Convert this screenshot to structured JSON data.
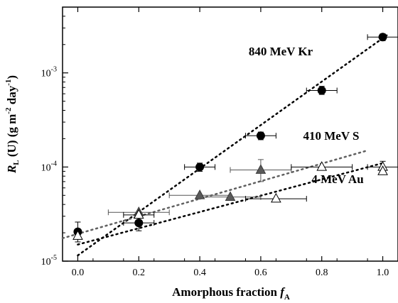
{
  "chart_data": {
    "type": "scatter",
    "xlabel": "Amorphous fraction f",
    "xlabel_main": "Amorphous fraction",
    "xlabel_var": "f",
    "xlabel_sub": "A",
    "ylabel_var": "R",
    "ylabel_sub": "L",
    "ylabel_rest": "(U) (g m",
    "ylabel_exp1": "-2",
    "ylabel_mid": "day",
    "ylabel_exp2": "-1",
    "ylabel_end": ")",
    "xlim": [
      -0.05,
      1.05
    ],
    "ylim": [
      1e-05,
      0.005
    ],
    "yscale": "log",
    "xticks": [
      0.0,
      0.2,
      0.4,
      0.6,
      0.8,
      1.0
    ],
    "xtick_labels": [
      "0.0",
      "0.2",
      "0.4",
      "0.6",
      "0.8",
      "1.0"
    ],
    "yticks": [
      1e-05,
      0.0001,
      0.001
    ],
    "ytick_base": "10",
    "ytick_exps": [
      "-5",
      "-4",
      "-3"
    ],
    "series": [
      {
        "name": "840 MeV Kr",
        "marker": "circle",
        "fill": "#000000",
        "points": [
          {
            "x": 0.0,
            "y": 2.05e-05,
            "yerr_lo": 1.6e-05,
            "yerr_hi": 2.6e-05
          },
          {
            "x": 0.2,
            "y": 2.55e-05,
            "xerr": 0.05,
            "yerr_lo": 2.1e-05,
            "yerr_hi": 3e-05
          },
          {
            "x": 0.4,
            "y": 0.0001,
            "xerr": 0.05,
            "yerr_lo": 9e-05,
            "yerr_hi": 0.00011
          },
          {
            "x": 0.6,
            "y": 0.000215,
            "xerr": 0.05,
            "yerr_lo": 0.000195,
            "yerr_hi": 0.000235
          },
          {
            "x": 0.8,
            "y": 0.00065,
            "xerr": 0.05,
            "yerr_lo": 0.00059,
            "yerr_hi": 0.00072
          },
          {
            "x": 1.0,
            "y": 0.0024,
            "xerr": 0.05,
            "yerr_lo": 0.0022,
            "yerr_hi": 0.0026
          }
        ],
        "fit": {
          "x": [
            0.0,
            1.02
          ],
          "y": [
            1.15e-05,
            0.0026
          ],
          "color": "#000000"
        }
      },
      {
        "name": "410 MeV S",
        "marker": "triangle",
        "fill": "#5a5a5a",
        "points": [
          {
            "x": 0.2,
            "y": 3.3e-05,
            "xerr": 0.1
          },
          {
            "x": 0.4,
            "y": 5e-05,
            "xerr": 0.1
          },
          {
            "x": 0.5,
            "y": 4.8e-05,
            "xerr": 0.1
          },
          {
            "x": 0.6,
            "y": 9.3e-05,
            "xerr": 0.1,
            "yerr_lo": 7e-05,
            "yerr_hi": 0.00012
          }
        ],
        "fit": {
          "x": [
            -0.05,
            0.95
          ],
          "y": [
            1.75e-05,
            0.00015
          ],
          "color": "#606060"
        }
      },
      {
        "name": "4 MeV Au",
        "marker": "triangle-open",
        "fill": "#ffffff",
        "points": [
          {
            "x": 0.0,
            "y": 1.85e-05
          },
          {
            "x": 0.2,
            "y": 3.1e-05,
            "xerr": 0.05
          },
          {
            "x": 0.65,
            "y": 4.6e-05,
            "xerr": 0.1
          },
          {
            "x": 0.8,
            "y": 0.0001,
            "xerr": 0.1
          },
          {
            "x": 1.0,
            "y": 0.0001,
            "xerr": 0.05,
            "yerr_lo": 8.5e-05,
            "yerr_hi": 0.000115
          },
          {
            "x": 1.0,
            "y": 9e-05
          }
        ],
        "fit": {
          "x": [
            0.0,
            1.0
          ],
          "y": [
            1.5e-05,
            0.00011
          ],
          "color": "#000000"
        }
      }
    ],
    "annotations": [
      "840 MeV Kr",
      "410 MeV S",
      "4 MeV Au"
    ]
  }
}
